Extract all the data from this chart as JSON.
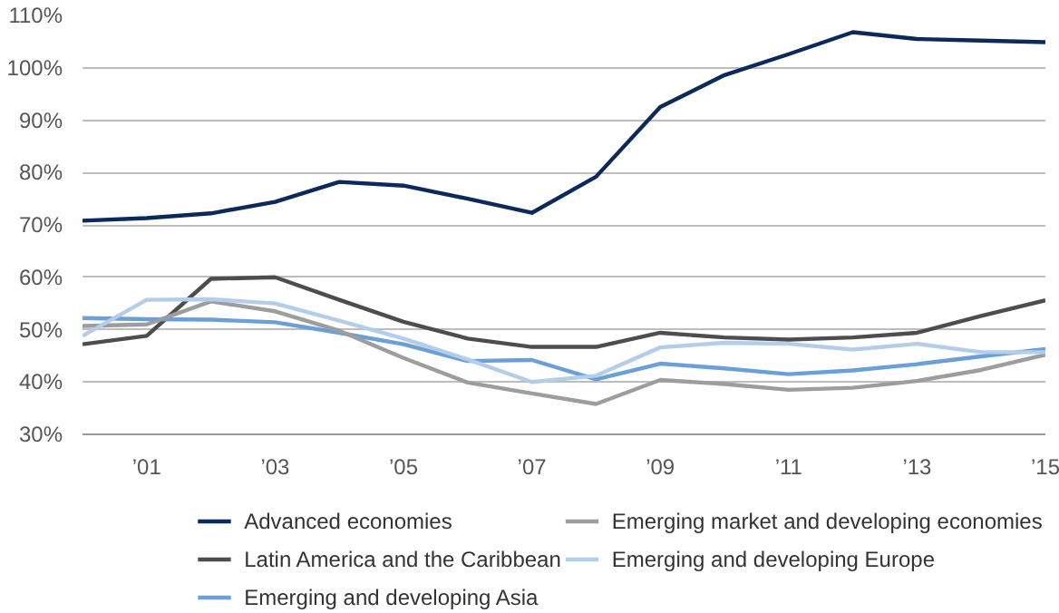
{
  "chart_data": {
    "type": "line",
    "x": [
      2000,
      2001,
      2002,
      2003,
      2004,
      2005,
      2006,
      2007,
      2008,
      2009,
      2010,
      2011,
      2012,
      2013,
      2014,
      2015
    ],
    "series": [
      {
        "name": "Advanced economies",
        "color": "#0b2a5b",
        "values": [
          70.8,
          71.3,
          72.2,
          74.4,
          78.2,
          77.5,
          75,
          72.3,
          79.2,
          92.5,
          98.6,
          102.6,
          106.8,
          105.5,
          105.2,
          104.9
        ]
      },
      {
        "name": "Latin America and the Caribbean",
        "color": "#4d4d4f",
        "values": [
          47.2,
          48.8,
          59.7,
          60,
          55.7,
          51.5,
          48.3,
          46.7,
          46.7,
          49.4,
          48.5,
          48.1,
          48.5,
          49.4,
          52.6,
          55.6
        ]
      },
      {
        "name": "Emerging and developing Asia",
        "color": "#6a9fd8",
        "values": [
          52.2,
          52,
          51.9,
          51.4,
          49.4,
          47.2,
          44,
          44.2,
          40.5,
          43.5,
          42.6,
          41.5,
          42.2,
          43.4,
          44.9,
          46.3
        ]
      },
      {
        "name": "Emerging market and developing economies",
        "color": "#9d9d9f",
        "values": [
          50.7,
          51,
          55.4,
          53.5,
          49.8,
          44.6,
          39.9,
          37.8,
          35.8,
          40.4,
          39.6,
          38.5,
          38.9,
          40.2,
          42.3,
          45.2
        ]
      },
      {
        "name": "Emerging and developing Europe",
        "color": "#b3cdea",
        "values": [
          48.8,
          55.7,
          55.8,
          55,
          51.7,
          48.3,
          44.3,
          40,
          41.2,
          46.6,
          47.5,
          47.3,
          46.2,
          47.3,
          45.7,
          45.7
        ]
      }
    ],
    "xlim": [
      2000,
      2015
    ],
    "xticks": [
      {
        "value": 2001,
        "label": "’01"
      },
      {
        "value": 2003,
        "label": "’03"
      },
      {
        "value": 2005,
        "label": "’05"
      },
      {
        "value": 2007,
        "label": "’07"
      },
      {
        "value": 2009,
        "label": "’09"
      },
      {
        "value": 2011,
        "label": "’11"
      },
      {
        "value": 2013,
        "label": "’13"
      },
      {
        "value": 2015,
        "label": "’15"
      }
    ],
    "ylim": [
      30,
      110
    ],
    "yticks": [
      {
        "value": 30,
        "label": "30%"
      },
      {
        "value": 40,
        "label": "40%"
      },
      {
        "value": 50,
        "label": "50%"
      },
      {
        "value": 60,
        "label": "60%"
      },
      {
        "value": 70,
        "label": "70%"
      },
      {
        "value": 80,
        "label": "80%"
      },
      {
        "value": 90,
        "label": "90%"
      },
      {
        "value": 100,
        "label": "100%"
      },
      {
        "value": 110,
        "label": "110%"
      }
    ],
    "grid": "y",
    "legend": "bottom",
    "line_style": "solid"
  }
}
